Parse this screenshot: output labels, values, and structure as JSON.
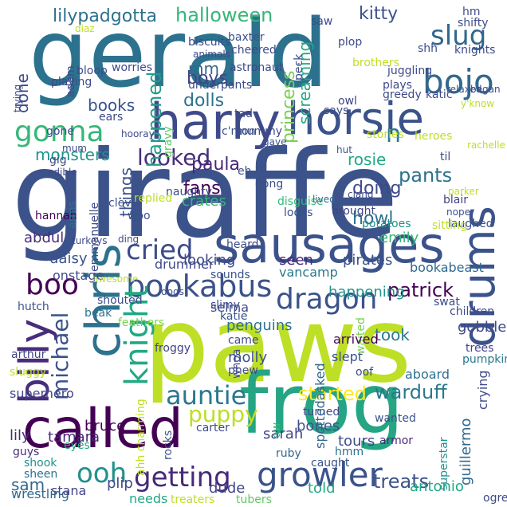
{
  "words": [
    {
      "text": "giraffe",
      "color": "#3b528b"
    },
    {
      "text": "paws",
      "color": "#bddf26"
    },
    {
      "text": "gerald",
      "color": "#2c728e"
    },
    {
      "text": "frog",
      "color": "#25a584"
    },
    {
      "text": "sausages",
      "color": "#3b528b"
    },
    {
      "text": "called",
      "color": "#440154"
    },
    {
      "text": "harry",
      "color": "#3e4a89"
    },
    {
      "text": "horsie",
      "color": "#3b528b"
    },
    {
      "text": "chris",
      "color": "#2c728e"
    },
    {
      "text": "billy",
      "color": "#472d7b"
    },
    {
      "text": "bookabus",
      "color": "#3b528b"
    },
    {
      "text": "growler",
      "color": "#3b528b"
    },
    {
      "text": "getting",
      "color": "#482878"
    },
    {
      "text": "ooh",
      "color": "#21918c"
    },
    {
      "text": "gonna",
      "color": "#35b779"
    },
    {
      "text": "cried",
      "color": "#3e4a89"
    },
    {
      "text": "knight",
      "color": "#22a884"
    },
    {
      "text": "dragon",
      "color": "#3b528b"
    },
    {
      "text": "drums",
      "color": "#3b528b"
    },
    {
      "text": "boo",
      "color": "#440154"
    },
    {
      "text": "bojo",
      "color": "#31688e"
    },
    {
      "text": "slug",
      "color": "#31688e"
    },
    {
      "text": "halloween",
      "color": "#35b779"
    },
    {
      "text": "lilypadgotta",
      "color": "#2c728e"
    },
    {
      "text": "kitty",
      "color": "#3b528b"
    },
    {
      "text": "auntie",
      "color": "#2a788e"
    },
    {
      "text": "puppy",
      "color": "#bddf26"
    },
    {
      "text": "started",
      "color": "#fde725"
    },
    {
      "text": "warduff",
      "color": "#2a788e"
    },
    {
      "text": "treats",
      "color": "#3b528b"
    },
    {
      "text": "patrick",
      "color": "#440154"
    },
    {
      "text": "michael",
      "color": "#3b528b"
    },
    {
      "text": "monsters",
      "color": "#21918c"
    },
    {
      "text": "looked",
      "color": "#472d7b"
    },
    {
      "text": "paula",
      "color": "#482878"
    },
    {
      "text": "pants",
      "color": "#2c728e"
    },
    {
      "text": "books",
      "color": "#3b528b"
    },
    {
      "text": "dolls",
      "color": "#2c728e"
    },
    {
      "text": "boys",
      "color": "#414487"
    },
    {
      "text": "happened",
      "color": "#1f9e89"
    },
    {
      "text": "princess",
      "color": "#7ad151"
    },
    {
      "text": "screaming",
      "color": "#22a884"
    },
    {
      "text": "mm",
      "color": "#31688e"
    },
    {
      "text": "n",
      "color": "#2a788e"
    },
    {
      "text": "fans",
      "color": "#440154"
    },
    {
      "text": "doing",
      "color": "#3e4a89"
    },
    {
      "text": "howl",
      "color": "#2c728e"
    },
    {
      "text": "rosie",
      "color": "#22a884"
    },
    {
      "text": "things",
      "color": "#3b528b"
    },
    {
      "text": "crates",
      "color": "#35b779"
    },
    {
      "text": "seen",
      "color": "#482878"
    },
    {
      "text": "looking",
      "color": "#3e4a89"
    },
    {
      "text": "pirates",
      "color": "#3b528b"
    },
    {
      "text": "emily",
      "color": "#35b779"
    },
    {
      "text": "abdul",
      "color": "#472d7b"
    },
    {
      "text": "daisy",
      "color": "#3b528b"
    },
    {
      "text": "drummer",
      "color": "#3e4a89"
    },
    {
      "text": "onstage",
      "color": "#3e4a89"
    },
    {
      "text": "penguins",
      "color": "#2c728e"
    },
    {
      "text": "happening",
      "color": "#21918c"
    },
    {
      "text": "bookabeast",
      "color": "#31688e"
    },
    {
      "text": "took",
      "color": "#2a788e"
    },
    {
      "text": "sam",
      "color": "#31688e"
    },
    {
      "text": "bruce",
      "color": "#440154"
    },
    {
      "text": "tamara",
      "color": "#482878"
    },
    {
      "text": "lily",
      "color": "#482878"
    },
    {
      "text": "antonio",
      "color": "#22a884"
    },
    {
      "text": "tours",
      "color": "#3e4a89"
    },
    {
      "text": "bones",
      "color": "#3b528b"
    },
    {
      "text": "sarah",
      "color": "#414487"
    },
    {
      "text": "guillermo",
      "color": "#31688e"
    },
    {
      "text": "told",
      "color": "#22a884"
    },
    {
      "text": "plip",
      "color": "#3e4a89"
    },
    {
      "text": "dude",
      "color": "#414487"
    },
    {
      "text": "stana",
      "color": "#414487"
    },
    {
      "text": "wrestling",
      "color": "#31688e"
    },
    {
      "text": "needs",
      "color": "#22a884"
    },
    {
      "text": "treaters",
      "color": "#bddf26"
    },
    {
      "text": "tubers",
      "color": "#5ec962"
    },
    {
      "text": "ogre",
      "color": "#3e4a89"
    },
    {
      "text": "sheen",
      "color": "#2c728e"
    },
    {
      "text": "shook",
      "color": "#21918c"
    },
    {
      "text": "guys",
      "color": "#472d7b"
    },
    {
      "text": "eyes",
      "color": "#22a884"
    },
    {
      "text": "rocks",
      "color": "#3b528b"
    },
    {
      "text": "carter",
      "color": "#3e4a89"
    },
    {
      "text": "ruby",
      "color": "#31688e"
    },
    {
      "text": "caught",
      "color": "#3b528b"
    },
    {
      "text": "hmm",
      "color": "#2c728e"
    },
    {
      "text": "armor",
      "color": "#472d7b"
    },
    {
      "text": "superstar",
      "color": "#21918c"
    },
    {
      "text": "wanted",
      "color": "#3b528b"
    },
    {
      "text": "turned",
      "color": "#3e4a89"
    },
    {
      "text": "ow",
      "color": "#35b779"
    },
    {
      "text": "spottedasked",
      "color": "#31688e"
    },
    {
      "text": "slept",
      "color": "#3b528b"
    },
    {
      "text": "oof",
      "color": "#3e4a89"
    },
    {
      "text": "aboard",
      "color": "#2c728e"
    },
    {
      "text": "crying",
      "color": "#3e4a89"
    },
    {
      "text": "trees",
      "color": "#414487"
    },
    {
      "text": "waited",
      "color": "#7ad151"
    },
    {
      "text": "arrived",
      "color": "#440154"
    },
    {
      "text": "pumpkin",
      "color": "#2a788e"
    },
    {
      "text": "gobble",
      "color": "#3e4a89"
    },
    {
      "text": "swat",
      "color": "#3e4a89"
    },
    {
      "text": "children",
      "color": "#3e4a89"
    },
    {
      "text": "selma",
      "color": "#3e4a89"
    },
    {
      "text": "vancamp",
      "color": "#2a788e"
    },
    {
      "text": "sounds",
      "color": "#3b528b"
    },
    {
      "text": "came",
      "color": "#3e4a89"
    },
    {
      "text": "molly",
      "color": "#3b528b"
    },
    {
      "text": "phew",
      "color": "#3e4a89"
    },
    {
      "text": "katie",
      "color": "#3b528b"
    },
    {
      "text": "slimy",
      "color": "#3e4a89"
    },
    {
      "text": "froggy",
      "color": "#414487"
    },
    {
      "text": "feathers",
      "color": "#7ad151"
    },
    {
      "text": "beak",
      "color": "#2c728e"
    },
    {
      "text": "shouted",
      "color": "#3e4a89"
    },
    {
      "text": "hutch",
      "color": "#3b528b"
    },
    {
      "text": "arthur",
      "color": "#414487"
    },
    {
      "text": "sluggy",
      "color": "#bddf26"
    },
    {
      "text": "superhero",
      "color": "#414487"
    },
    {
      "text": "ahh charming",
      "color": "#bddf26"
    },
    {
      "text": "whoa",
      "color": "#3e4a89"
    },
    {
      "text": "potatoes",
      "color": "#21918c"
    },
    {
      "text": "laughed",
      "color": "#3b528b"
    },
    {
      "text": "sitting",
      "color": "#bddf26"
    },
    {
      "text": "nope",
      "color": "#3b528b"
    },
    {
      "text": "blair",
      "color": "#414487"
    },
    {
      "text": "parker",
      "color": "#bddf26"
    },
    {
      "text": "clang",
      "color": "#3e4a89"
    },
    {
      "text": "brought",
      "color": "#414487"
    },
    {
      "text": "looks",
      "color": "#3b528b"
    },
    {
      "text": "disguise",
      "color": "#35b779"
    },
    {
      "text": "lived",
      "color": "#31688e"
    },
    {
      "text": "heard",
      "color": "#3e4a89"
    },
    {
      "text": "clever",
      "color": "#3b528b"
    },
    {
      "text": "woo",
      "color": "#3b528b"
    },
    {
      "text": "hannah",
      "color": "#440154"
    },
    {
      "text": "naughty",
      "color": "#3e4a89"
    },
    {
      "text": "arms",
      "color": "#2c728e"
    },
    {
      "text": "emmanuelle",
      "color": "#3e4a89"
    },
    {
      "text": "dong",
      "color": "#3b528b"
    },
    {
      "text": "eh",
      "color": "#3b528b"
    },
    {
      "text": "gravy",
      "color": "#5ec962"
    },
    {
      "text": "gave",
      "color": "#3b528b"
    },
    {
      "text": "c'mon",
      "color": "#3b528b"
    },
    {
      "text": "mummy",
      "color": "#3e4a89"
    },
    {
      "text": "stories",
      "color": "#bddf26"
    },
    {
      "text": "heroes",
      "color": "#bddf26"
    },
    {
      "text": "til",
      "color": "#3e4a89"
    },
    {
      "text": "hut",
      "color": "#3b528b"
    },
    {
      "text": "rachelle",
      "color": "#bddf26"
    },
    {
      "text": "y'know",
      "color": "#bddf26"
    },
    {
      "text": "katic",
      "color": "#3e4a89"
    },
    {
      "text": "relaxed",
      "color": "#3b528b"
    },
    {
      "text": "began",
      "color": "#3e4a89"
    },
    {
      "text": "owl",
      "color": "#414487"
    },
    {
      "text": "says",
      "color": "#3e4a89"
    },
    {
      "text": "plays",
      "color": "#3e4a89"
    },
    {
      "text": "greedy",
      "color": "#3e4a89"
    },
    {
      "text": "juggling",
      "color": "#3e4a89"
    },
    {
      "text": "brothers",
      "color": "#bddf26"
    },
    {
      "text": "knights",
      "color": "#3e4a89"
    },
    {
      "text": "peck",
      "color": "#3e4a89"
    },
    {
      "text": "shifty",
      "color": "#3e4a89"
    },
    {
      "text": "hm",
      "color": "#3e4a89"
    },
    {
      "text": "shh",
      "color": "#3e4a89"
    },
    {
      "text": "plop",
      "color": "#3e4a89"
    },
    {
      "text": "saw",
      "color": "#3e4a89"
    },
    {
      "text": "cheered",
      "color": "#3e4a89"
    },
    {
      "text": "astronaut",
      "color": "#3e4a89"
    },
    {
      "text": "animals",
      "color": "#3e4a89"
    },
    {
      "text": "biscuits",
      "color": "#3e4a89"
    },
    {
      "text": "baxter",
      "color": "#3b528b"
    },
    {
      "text": "diaz",
      "color": "#bddf26"
    },
    {
      "text": "done",
      "color": "#3e4a89"
    },
    {
      "text": "trying",
      "color": "#3e4a89"
    },
    {
      "text": "bloop",
      "color": "#3e4a89"
    },
    {
      "text": "playing",
      "color": "#3e4a89"
    },
    {
      "text": "worries",
      "color": "#3e4a89"
    },
    {
      "text": "underpants",
      "color": "#3e4a89"
    },
    {
      "text": "tad",
      "color": "#3e4a89"
    },
    {
      "text": "adam",
      "color": "#3e4a89"
    },
    {
      "text": "gone",
      "color": "#3e4a89"
    },
    {
      "text": "ears",
      "color": "#3e4a89"
    },
    {
      "text": "hooray",
      "color": "#3e4a89"
    },
    {
      "text": "mum",
      "color": "#3e4a89"
    },
    {
      "text": "gig",
      "color": "#3e4a89"
    },
    {
      "text": "edible",
      "color": "#3e4a89"
    },
    {
      "text": "replied",
      "color": "#bddf26"
    },
    {
      "text": "turkeys",
      "color": "#3e4a89"
    },
    {
      "text": "ding",
      "color": "#3e4a89"
    },
    {
      "text": "dogs",
      "color": "#3e4a89"
    },
    {
      "text": "awesome",
      "color": "#bddf26"
    }
  ]
}
